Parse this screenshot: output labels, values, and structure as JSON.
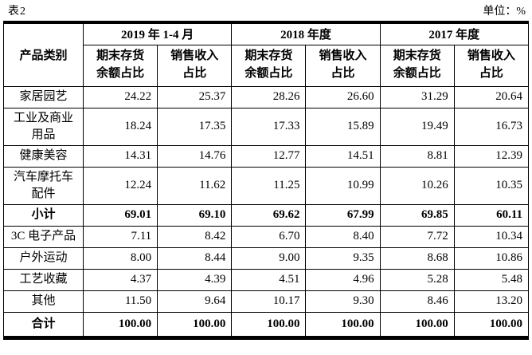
{
  "page": {
    "table_label": "表2",
    "unit_label": "单位：%"
  },
  "table": {
    "product_col_header": "产品类别",
    "periods": [
      {
        "label": "2019 年 1-4 月",
        "sub_headers": [
          "期末存货\n余额占比",
          "销售收入\n占比"
        ]
      },
      {
        "label": "2018 年度",
        "sub_headers": [
          "期末存货\n余额占比",
          "销售收入\n占比"
        ]
      },
      {
        "label": "2017 年度",
        "sub_headers": [
          "期末存货\n余额占比",
          "销售收入\n占比"
        ]
      }
    ],
    "rows": [
      {
        "category": "家居园艺",
        "values": [
          "24.22",
          "25.37",
          "28.26",
          "26.60",
          "31.29",
          "20.64"
        ],
        "emphasis": false
      },
      {
        "category": "工业及商业\n用品",
        "values": [
          "18.24",
          "17.35",
          "17.33",
          "15.89",
          "19.49",
          "16.73"
        ],
        "emphasis": false
      },
      {
        "category": "健康美容",
        "values": [
          "14.31",
          "14.76",
          "12.77",
          "14.51",
          "8.81",
          "12.39"
        ],
        "emphasis": false
      },
      {
        "category": "汽车摩托车\n配件",
        "values": [
          "12.24",
          "11.62",
          "11.25",
          "10.99",
          "10.26",
          "10.35"
        ],
        "emphasis": false
      },
      {
        "category": "小计",
        "values": [
          "69.01",
          "69.10",
          "69.62",
          "67.99",
          "69.85",
          "60.11"
        ],
        "emphasis": true
      },
      {
        "category": "3C 电子产品",
        "values": [
          "7.11",
          "8.42",
          "6.70",
          "8.40",
          "7.72",
          "10.34"
        ],
        "emphasis": false
      },
      {
        "category": "户外运动",
        "values": [
          "8.00",
          "8.44",
          "9.00",
          "9.35",
          "8.68",
          "10.86"
        ],
        "emphasis": false
      },
      {
        "category": "工艺收藏",
        "values": [
          "4.37",
          "4.39",
          "4.51",
          "4.96",
          "5.28",
          "5.48"
        ],
        "emphasis": false
      },
      {
        "category": "其他",
        "values": [
          "11.50",
          "9.64",
          "10.17",
          "9.30",
          "8.46",
          "13.20"
        ],
        "emphasis": false
      },
      {
        "category": "合计",
        "values": [
          "100.00",
          "100.00",
          "100.00",
          "100.00",
          "100.00",
          "100.00"
        ],
        "emphasis": true
      }
    ]
  }
}
